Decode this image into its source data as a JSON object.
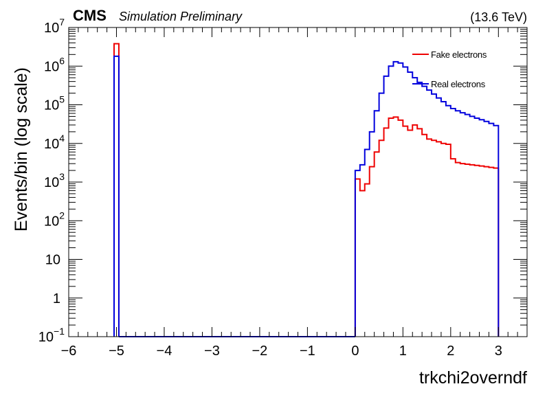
{
  "header": {
    "experiment": "CMS",
    "status": "Simulation Preliminary",
    "energy": "(13.6 TeV)"
  },
  "colors": {
    "fake": "#ee0000",
    "real": "#0000dd",
    "axis": "#000000"
  },
  "chart_data": {
    "type": "histogram",
    "xlabel": "trkchi2overndf",
    "ylabel": "Events/bin (log scale)",
    "log_y": true,
    "xlim": [
      -6,
      3.6
    ],
    "ylim": [
      0.1,
      10000000
    ],
    "x_ticks": [
      {
        "v": -6,
        "label": "−6"
      },
      {
        "v": -5,
        "label": "−5"
      },
      {
        "v": -4,
        "label": "−4"
      },
      {
        "v": -3,
        "label": "−3"
      },
      {
        "v": -2,
        "label": "−2"
      },
      {
        "v": -1,
        "label": "−1"
      },
      {
        "v": 0,
        "label": "0"
      },
      {
        "v": 1,
        "label": "1"
      },
      {
        "v": 2,
        "label": "2"
      },
      {
        "v": 3,
        "label": "3"
      }
    ],
    "y_ticks": [
      {
        "v": 0.1,
        "base": "10",
        "exp": "−1"
      },
      {
        "v": 1,
        "base": "1",
        "exp": ""
      },
      {
        "v": 10,
        "base": "10",
        "exp": ""
      },
      {
        "v": 100,
        "base": "10",
        "exp": "2"
      },
      {
        "v": 1000,
        "base": "10",
        "exp": "3"
      },
      {
        "v": 10000,
        "base": "10",
        "exp": "4"
      },
      {
        "v": 100000,
        "base": "10",
        "exp": "5"
      },
      {
        "v": 1000000,
        "base": "10",
        "exp": "6"
      },
      {
        "v": 10000000,
        "base": "10",
        "exp": "7"
      }
    ],
    "legend_position": "top-right",
    "series": [
      {
        "name": "Fake electrons",
        "color": "#ee0000",
        "bins": [
          {
            "lo": -5.05,
            "hi": -4.95,
            "y": 3800000
          },
          {
            "lo": 0.0,
            "hi": 0.1,
            "y": 1200
          },
          {
            "lo": 0.1,
            "hi": 0.2,
            "y": 600
          },
          {
            "lo": 0.2,
            "hi": 0.3,
            "y": 900
          },
          {
            "lo": 0.3,
            "hi": 0.4,
            "y": 2500
          },
          {
            "lo": 0.4,
            "hi": 0.5,
            "y": 6000
          },
          {
            "lo": 0.5,
            "hi": 0.6,
            "y": 12000
          },
          {
            "lo": 0.6,
            "hi": 0.7,
            "y": 25000
          },
          {
            "lo": 0.7,
            "hi": 0.8,
            "y": 45000
          },
          {
            "lo": 0.8,
            "hi": 0.9,
            "y": 48000
          },
          {
            "lo": 0.9,
            "hi": 1.0,
            "y": 40000
          },
          {
            "lo": 1.0,
            "hi": 1.1,
            "y": 28000
          },
          {
            "lo": 1.1,
            "hi": 1.2,
            "y": 22000
          },
          {
            "lo": 1.2,
            "hi": 1.3,
            "y": 30000
          },
          {
            "lo": 1.3,
            "hi": 1.4,
            "y": 24000
          },
          {
            "lo": 1.4,
            "hi": 1.5,
            "y": 17000
          },
          {
            "lo": 1.5,
            "hi": 1.6,
            "y": 13000
          },
          {
            "lo": 1.6,
            "hi": 1.7,
            "y": 12000
          },
          {
            "lo": 1.7,
            "hi": 1.8,
            "y": 11000
          },
          {
            "lo": 1.8,
            "hi": 1.9,
            "y": 10000
          },
          {
            "lo": 1.9,
            "hi": 2.0,
            "y": 9500
          },
          {
            "lo": 2.0,
            "hi": 2.1,
            "y": 4000
          },
          {
            "lo": 2.1,
            "hi": 2.2,
            "y": 3200
          },
          {
            "lo": 2.2,
            "hi": 2.3,
            "y": 3000
          },
          {
            "lo": 2.3,
            "hi": 2.4,
            "y": 2900
          },
          {
            "lo": 2.4,
            "hi": 2.5,
            "y": 2800
          },
          {
            "lo": 2.5,
            "hi": 2.6,
            "y": 2700
          },
          {
            "lo": 2.6,
            "hi": 2.7,
            "y": 2600
          },
          {
            "lo": 2.7,
            "hi": 2.8,
            "y": 2500
          },
          {
            "lo": 2.8,
            "hi": 2.9,
            "y": 2400
          },
          {
            "lo": 2.9,
            "hi": 3.0,
            "y": 2300
          }
        ]
      },
      {
        "name": "Real electrons",
        "color": "#0000dd",
        "bins": [
          {
            "lo": -5.05,
            "hi": -4.95,
            "y": 1800000
          },
          {
            "lo": 0.0,
            "hi": 0.1,
            "y": 2000
          },
          {
            "lo": 0.1,
            "hi": 0.2,
            "y": 2800
          },
          {
            "lo": 0.2,
            "hi": 0.3,
            "y": 7000
          },
          {
            "lo": 0.3,
            "hi": 0.4,
            "y": 20000
          },
          {
            "lo": 0.4,
            "hi": 0.5,
            "y": 70000
          },
          {
            "lo": 0.5,
            "hi": 0.6,
            "y": 200000
          },
          {
            "lo": 0.6,
            "hi": 0.7,
            "y": 550000
          },
          {
            "lo": 0.7,
            "hi": 0.8,
            "y": 1000000
          },
          {
            "lo": 0.8,
            "hi": 0.9,
            "y": 1300000
          },
          {
            "lo": 0.9,
            "hi": 1.0,
            "y": 1200000
          },
          {
            "lo": 1.0,
            "hi": 1.1,
            "y": 950000
          },
          {
            "lo": 1.1,
            "hi": 1.2,
            "y": 700000
          },
          {
            "lo": 1.2,
            "hi": 1.3,
            "y": 500000
          },
          {
            "lo": 1.3,
            "hi": 1.4,
            "y": 380000
          },
          {
            "lo": 1.4,
            "hi": 1.5,
            "y": 300000
          },
          {
            "lo": 1.5,
            "hi": 1.6,
            "y": 240000
          },
          {
            "lo": 1.6,
            "hi": 1.7,
            "y": 190000
          },
          {
            "lo": 1.7,
            "hi": 1.8,
            "y": 150000
          },
          {
            "lo": 1.8,
            "hi": 1.9,
            "y": 120000
          },
          {
            "lo": 1.9,
            "hi": 2.0,
            "y": 95000
          },
          {
            "lo": 2.0,
            "hi": 2.1,
            "y": 80000
          },
          {
            "lo": 2.1,
            "hi": 2.2,
            "y": 70000
          },
          {
            "lo": 2.2,
            "hi": 2.3,
            "y": 62000
          },
          {
            "lo": 2.3,
            "hi": 2.4,
            "y": 56000
          },
          {
            "lo": 2.4,
            "hi": 2.5,
            "y": 50000
          },
          {
            "lo": 2.5,
            "hi": 2.6,
            "y": 45000
          },
          {
            "lo": 2.6,
            "hi": 2.7,
            "y": 41000
          },
          {
            "lo": 2.7,
            "hi": 2.8,
            "y": 37000
          },
          {
            "lo": 2.8,
            "hi": 2.9,
            "y": 33000
          },
          {
            "lo": 2.9,
            "hi": 3.0,
            "y": 29000
          }
        ]
      }
    ]
  }
}
